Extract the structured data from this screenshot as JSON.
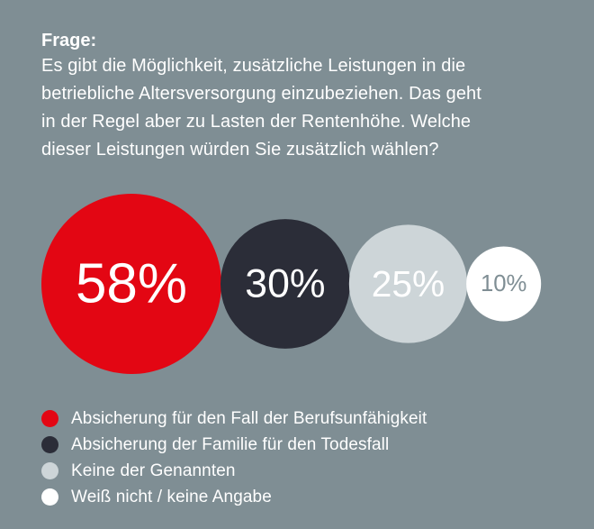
{
  "question": {
    "label": "Frage:",
    "lines": [
      "Es gibt die Möglichkeit, zusätzliche Leistungen in die",
      "betriebliche Altersversorgung einzubeziehen. Das geht",
      "in der Regel aber zu Lasten der Rentenhöhe. Welche",
      "dieser Leistungen würden Sie zusätzlich wählen?"
    ]
  },
  "chart_data": {
    "type": "bubble",
    "unit": "%",
    "series": [
      {
        "name": "Absicherung für den Fall der Berufsunfähigkeit",
        "value": 58,
        "label": "58%",
        "color": "#e30613",
        "text_color": "#ffffff"
      },
      {
        "name": "Absicherung der Familie für den Todesfall",
        "value": 30,
        "label": "30%",
        "color": "#2b2d38",
        "text_color": "#ffffff"
      },
      {
        "name": "Keine der Genannten",
        "value": 25,
        "label": "25%",
        "color": "#cdd5d8",
        "text_color": "#ffffff"
      },
      {
        "name": "Weiß nicht / keine Angabe",
        "value": 10,
        "label": "10%",
        "color": "#ffffff",
        "text_color": "#7f8e94"
      }
    ],
    "legend_position": "bottom-left"
  }
}
